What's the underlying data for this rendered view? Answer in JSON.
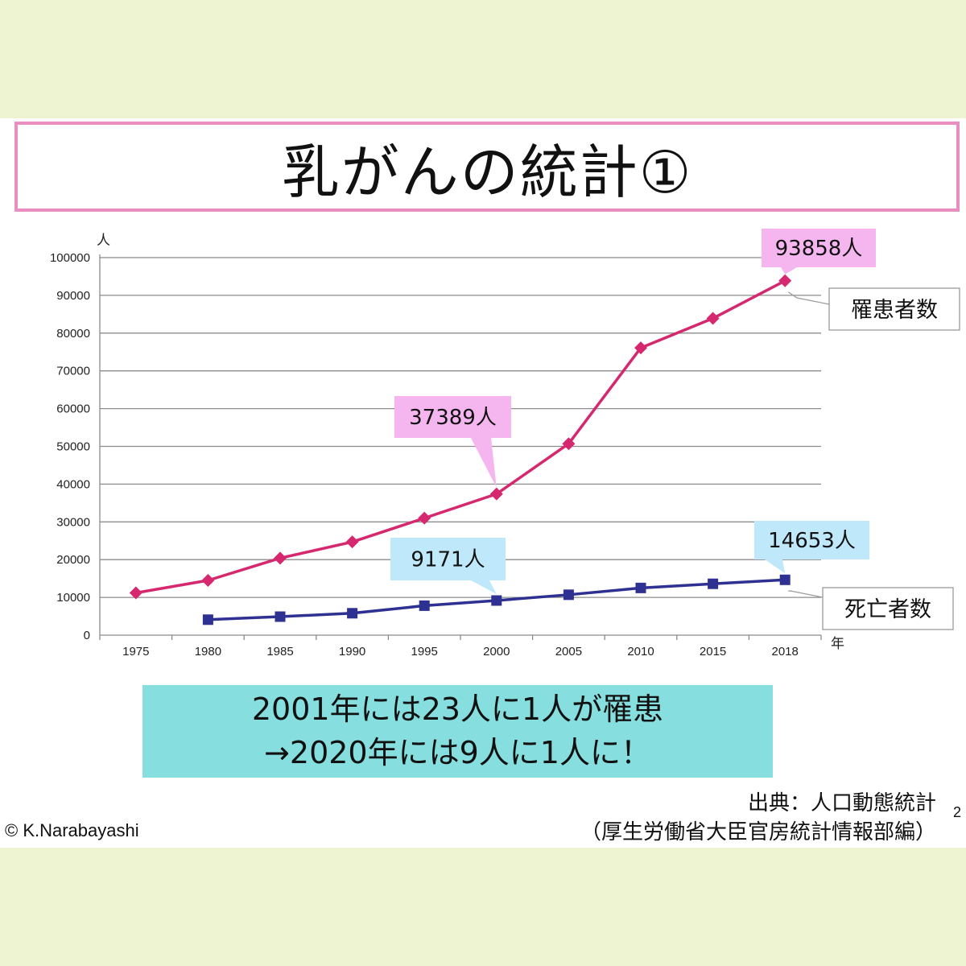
{
  "slide": {
    "title": "乳がんの統計①",
    "message_line1": "2001年には23人に1人が罹患",
    "message_line2": "→2020年には9人に1人に！",
    "source_line1": "出典：人口動態統計",
    "source_line2": "（厚生労働省大臣官房統計情報部編）",
    "page_number": "2",
    "copyright": "© K.Narabayashi"
  },
  "chart_data": {
    "type": "line",
    "y_unit": "人",
    "x_unit": "年",
    "categories": [
      "1975",
      "1980",
      "1985",
      "1990",
      "1995",
      "2000",
      "2005",
      "2010",
      "2015",
      "2018"
    ],
    "ylim": [
      0,
      100000
    ],
    "yticks": [
      0,
      10000,
      20000,
      30000,
      40000,
      50000,
      60000,
      70000,
      80000,
      90000,
      100000
    ],
    "grid": true,
    "series": [
      {
        "name": "罹患者数",
        "color": "#d6286f",
        "marker": "diamond",
        "values": [
          11200,
          14500,
          20400,
          24700,
          31000,
          37389,
          50700,
          76100,
          83900,
          93858
        ]
      },
      {
        "name": "死亡者数",
        "color": "#2e3192",
        "marker": "square",
        "values": [
          null,
          4100,
          4900,
          5800,
          7800,
          9171,
          10700,
          12500,
          13600,
          14653
        ]
      }
    ],
    "callouts": [
      {
        "text": "93858人",
        "series": 0,
        "index": 9,
        "color": "#f5b6ef"
      },
      {
        "text": "37389人",
        "series": 0,
        "index": 5,
        "color": "#f5b6ef"
      },
      {
        "text": "14653人",
        "series": 1,
        "index": 9,
        "color": "#bfe8fa"
      },
      {
        "text": "9171人",
        "series": 1,
        "index": 5,
        "color": "#bfe8fa"
      }
    ]
  }
}
